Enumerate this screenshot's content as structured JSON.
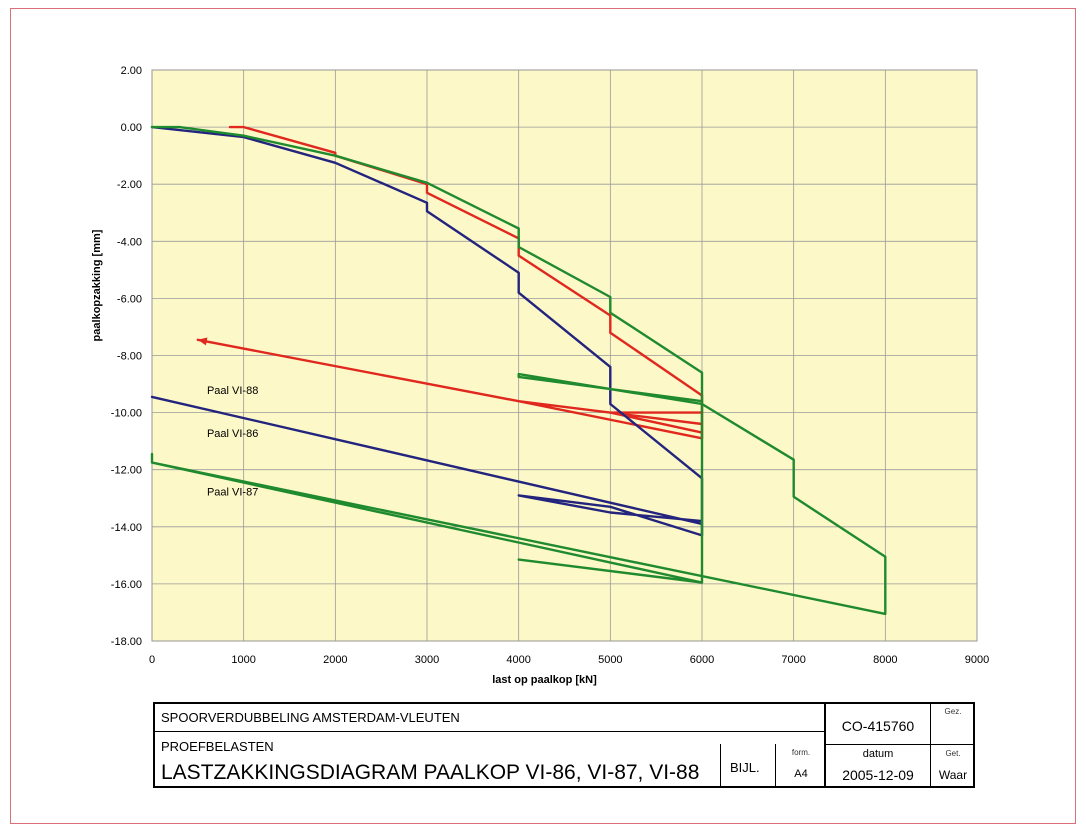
{
  "chart_data": {
    "type": "line",
    "xlabel": "last op paalkop [kN]",
    "ylabel": "paalkopzakking [mm]",
    "xlim": [
      0,
      9000
    ],
    "ylim": [
      -18,
      2
    ],
    "x_ticks": [
      "0",
      "1000",
      "2000",
      "3000",
      "4000",
      "5000",
      "6000",
      "7000",
      "8000",
      "9000"
    ],
    "y_ticks": [
      "2.00",
      "0.00",
      "-2.00",
      "-4.00",
      "-6.00",
      "-8.00",
      "-10.00",
      "-12.00",
      "-14.00",
      "-16.00",
      "-18.00"
    ],
    "grid": true,
    "background": "#fdf8c8",
    "series": [
      {
        "name": "Paal VI-88",
        "color": "#e0281e",
        "label_at": [
          880,
          -9.35
        ],
        "points": [
          [
            850,
            0
          ],
          [
            1000,
            0
          ],
          [
            2000,
            -0.9
          ],
          [
            2000,
            -1.0
          ],
          [
            3000,
            -2.0
          ],
          [
            3000,
            -2.3
          ],
          [
            4000,
            -3.9
          ],
          [
            4000,
            -4.5
          ],
          [
            5000,
            -6.6
          ],
          [
            5000,
            -7.2
          ],
          [
            6000,
            -9.4
          ],
          [
            6000,
            -10.9
          ],
          [
            4000,
            -9.6
          ],
          [
            500,
            -7.45
          ],
          [
            4000,
            -9.6
          ],
          [
            6000,
            -10.4
          ],
          [
            6000,
            -10.7
          ],
          [
            5000,
            -10.0
          ],
          [
            6000,
            -10.0
          ],
          [
            6000,
            -9.6
          ]
        ]
      },
      {
        "name": "Paal VI-86",
        "color": "#23247e",
        "label_at": [
          880,
          -10.85
        ],
        "points": [
          [
            0,
            0
          ],
          [
            1000,
            -0.35
          ],
          [
            2000,
            -1.25
          ],
          [
            3000,
            -2.65
          ],
          [
            3000,
            -2.95
          ],
          [
            4000,
            -5.1
          ],
          [
            4000,
            -5.8
          ],
          [
            5000,
            -8.4
          ],
          [
            5000,
            -9.7
          ],
          [
            6000,
            -12.3
          ],
          [
            6000,
            -14.3
          ],
          [
            5000,
            -13.3
          ],
          [
            4000,
            -12.9
          ],
          [
            5000,
            -13.5
          ],
          [
            6000,
            -13.8
          ],
          [
            6000,
            -13.9
          ],
          [
            0,
            -9.45
          ]
        ]
      },
      {
        "name": "Paal VI-87",
        "color": "#1f8a2e",
        "label_at": [
          880,
          -12.9
        ],
        "points": [
          [
            0,
            0
          ],
          [
            300,
            0
          ],
          [
            1000,
            -0.3
          ],
          [
            2000,
            -1.0
          ],
          [
            3000,
            -1.95
          ],
          [
            4000,
            -3.55
          ],
          [
            4000,
            -4.2
          ],
          [
            5000,
            -5.95
          ],
          [
            5000,
            -6.5
          ],
          [
            6000,
            -8.6
          ],
          [
            6000,
            -9.7
          ],
          [
            7000,
            -11.65
          ],
          [
            7000,
            -12.95
          ],
          [
            8000,
            -15.05
          ],
          [
            8000,
            -17.05
          ],
          [
            0,
            -11.75
          ],
          [
            0,
            -11.45
          ],
          [
            0,
            -11.75
          ],
          [
            6000,
            -15.95
          ],
          [
            4000,
            -15.15
          ],
          [
            6000,
            -15.95
          ],
          [
            6000,
            -9.7
          ],
          [
            4000,
            -8.65
          ],
          [
            4000,
            -8.75
          ],
          [
            6000,
            -9.6
          ]
        ]
      }
    ]
  },
  "title_block": {
    "project": "SPOORVERDUBBELING AMSTERDAM-VLEUTEN",
    "subject": "PROEFBELASTEN",
    "drawing_title": "LASTZAKKINGSDIAGRAM PAALKOP VI-86, VI-87, VI-88",
    "bijl_label": "BIJL.",
    "form_label": "form.",
    "form_value": "A4",
    "doc_number": "CO-415760",
    "gez_label": "Gez.",
    "datum_label": "datum",
    "datum_value": "2005-12-09",
    "get_label": "Get.",
    "get_value": "Waar"
  }
}
